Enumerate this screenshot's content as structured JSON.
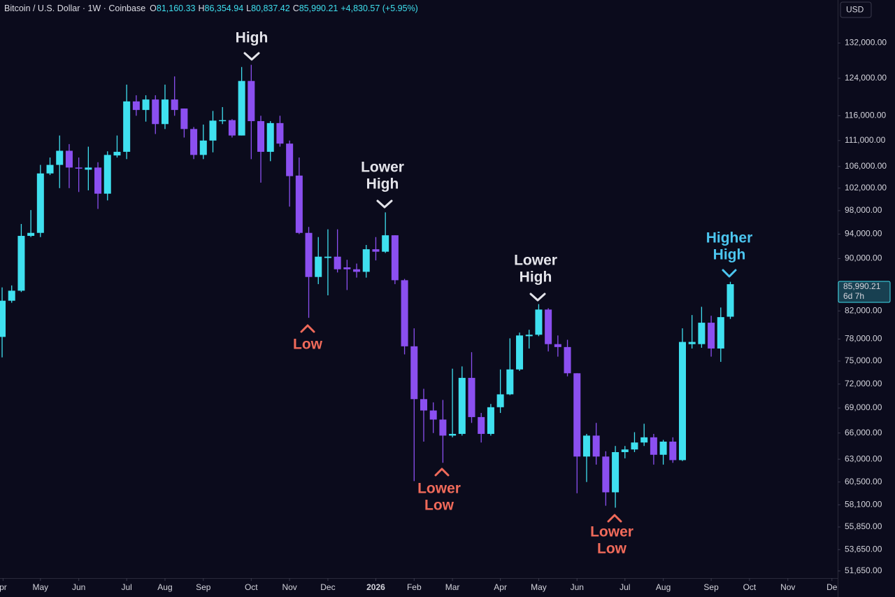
{
  "header": {
    "symbol": "Bitcoin / U.S. Dollar · 1W · Coinbase",
    "ohlc": [
      {
        "key": "O",
        "value": "81,160.33"
      },
      {
        "key": "H",
        "value": "86,354.94"
      },
      {
        "key": "L",
        "value": "80,837.42"
      },
      {
        "key": "C",
        "value": "85,990.21"
      }
    ],
    "change": "+4,830.57 (+5.95%)"
  },
  "currency": "USD",
  "annotations": [
    {
      "lines": [
        "High"
      ]
    },
    {
      "lines": [
        "Lower",
        "High"
      ]
    },
    {
      "lines": [
        "Low"
      ]
    },
    {
      "lines": [
        "Lower",
        "Low"
      ]
    },
    {
      "lines": [
        "Lower",
        "High"
      ]
    },
    {
      "lines": [
        "Lower",
        "Low"
      ]
    },
    {
      "lines": [
        "Higher",
        "High"
      ]
    }
  ],
  "chart_data": {
    "type": "candlestick",
    "log_scale": true,
    "up_color": "#3fe0ef",
    "down_color": "#8b4ff0",
    "x": [
      0,
      1,
      2,
      3,
      4,
      5,
      6,
      7,
      8,
      9,
      10,
      11,
      12,
      13,
      14,
      15,
      16,
      17,
      18,
      19,
      20,
      21,
      22,
      23,
      24,
      25,
      26,
      27,
      28,
      29,
      30,
      31,
      32,
      33,
      34,
      35,
      36,
      37,
      38,
      39,
      40,
      41,
      42,
      43,
      44,
      45,
      46,
      47,
      48,
      49,
      50,
      51,
      52,
      53,
      54,
      55,
      56,
      57,
      58,
      59,
      60,
      61,
      62,
      63,
      64,
      65,
      66,
      67,
      68,
      69,
      70,
      71,
      72,
      73,
      74,
      75,
      76
    ],
    "open": [
      78300,
      83500,
      85000,
      93700,
      94200,
      104700,
      106300,
      109000,
      105800,
      105400,
      105800,
      101000,
      108100,
      108800,
      119000,
      117200,
      119400,
      114300,
      119400,
      117500,
      113300,
      108200,
      111000,
      114900,
      115100,
      112000,
      123400,
      114900,
      108800,
      114500,
      110400,
      104300,
      94200,
      87100,
      90100,
      90300,
      88600,
      88300,
      87900,
      91500,
      91100,
      93800,
      86600,
      77000,
      70100,
      68700,
      67600,
      65700,
      65900,
      72800,
      67900,
      65900,
      69100,
      70700,
      73900,
      78400,
      78600,
      82200,
      77300,
      76900,
      73400,
      63300,
      65700,
      63300,
      59400,
      63800,
      64100,
      64900,
      65500,
      63500,
      65000,
      62900,
      77300,
      77300,
      80300,
      76700,
      81160.33
    ],
    "high": [
      85500,
      85800,
      95700,
      98100,
      106300,
      107700,
      112000,
      110300,
      107700,
      109800,
      106800,
      108900,
      112000,
      122600,
      120300,
      120300,
      120300,
      122600,
      124400,
      117500,
      113700,
      114200,
      117000,
      117800,
      115300,
      126500,
      127000,
      116000,
      114900,
      116000,
      111000,
      107700,
      95200,
      93500,
      94800,
      94800,
      89800,
      89200,
      92200,
      93500,
      97700,
      93800,
      86800,
      79500,
      71400,
      69700,
      70000,
      74000,
      74300,
      76200,
      68400,
      69500,
      73900,
      78100,
      78900,
      79300,
      83000,
      82400,
      78500,
      77900,
      73400,
      65900,
      67200,
      63900,
      64500,
      64500,
      66100,
      67100,
      65900,
      65200,
      65500,
      79500,
      81400,
      82600,
      81300,
      82500,
      86354.94
    ],
    "low": [
      75500,
      83200,
      84800,
      93500,
      93500,
      104400,
      102000,
      102000,
      101300,
      101600,
      98300,
      99800,
      107700,
      107400,
      116000,
      114800,
      112300,
      113300,
      116000,
      111600,
      107400,
      107400,
      108700,
      114300,
      111600,
      112000,
      107400,
      103000,
      107000,
      109800,
      98700,
      94000,
      81000,
      86000,
      84300,
      87800,
      85100,
      87000,
      87000,
      89700,
      90900,
      86000,
      75900,
      60600,
      65000,
      66000,
      62600,
      65500,
      65700,
      67200,
      64900,
      65700,
      68400,
      70600,
      73700,
      76700,
      78400,
      76300,
      75600,
      73000,
      59300,
      60500,
      62400,
      58000,
      57800,
      63100,
      63800,
      64500,
      62400,
      62400,
      62600,
      62800,
      76700,
      76800,
      75600,
      74900,
      80837.42
    ],
    "close": [
      83500,
      85000,
      93700,
      94200,
      104700,
      106300,
      109000,
      105800,
      105600,
      105800,
      101000,
      108200,
      108800,
      119000,
      117200,
      119400,
      114300,
      119400,
      117200,
      113300,
      108200,
      111000,
      115000,
      115100,
      112000,
      123400,
      114900,
      108800,
      114500,
      110400,
      104200,
      94200,
      87100,
      90300,
      90300,
      88300,
      88300,
      87900,
      91500,
      91100,
      93800,
      86600,
      77000,
      70100,
      68700,
      67600,
      65700,
      65900,
      72800,
      67900,
      65900,
      69100,
      70700,
      73900,
      78500,
      78600,
      82200,
      77300,
      76900,
      73400,
      63300,
      65700,
      63300,
      59400,
      63800,
      64100,
      64900,
      65500,
      63500,
      65000,
      62900,
      77600,
      77600,
      80300,
      76700,
      81100,
      85990.21
    ],
    "ylim": [
      51000,
      142500
    ],
    "yticks": [
      {
        "value": 132000,
        "label": "132,000.00"
      },
      {
        "value": 124000,
        "label": "124,000.00"
      },
      {
        "value": 116000,
        "label": "116,000.00"
      },
      {
        "value": 111000,
        "label": "111,000.00"
      },
      {
        "value": 106000,
        "label": "106,000.00"
      },
      {
        "value": 102000,
        "label": "102,000.00"
      },
      {
        "value": 98000,
        "label": "98,000.00"
      },
      {
        "value": 94000,
        "label": "94,000.00"
      },
      {
        "value": 90000,
        "label": "90,000.00"
      },
      {
        "value": 82000,
        "label": "82,000.00"
      },
      {
        "value": 78000,
        "label": "78,000.00"
      },
      {
        "value": 75000,
        "label": "75,000.00"
      },
      {
        "value": 72000,
        "label": "72,000.00"
      },
      {
        "value": 69000,
        "label": "69,000.00"
      },
      {
        "value": 66000,
        "label": "66,000.00"
      },
      {
        "value": 63000,
        "label": "63,000.00"
      },
      {
        "value": 60500,
        "label": "60,500.00"
      },
      {
        "value": 58100,
        "label": "58,100.00"
      },
      {
        "value": 55850,
        "label": "55,850.00"
      },
      {
        "value": 53650,
        "label": "53,650.00"
      },
      {
        "value": 51650,
        "label": "51,650.00"
      }
    ],
    "xlim": [
      -0.22,
      87.2
    ],
    "xticks": [
      {
        "value": 0.1,
        "label": "pr"
      },
      {
        "value": 4,
        "label": "May"
      },
      {
        "value": 8,
        "label": "Jun"
      },
      {
        "value": 13,
        "label": "Jul"
      },
      {
        "value": 17,
        "label": "Aug"
      },
      {
        "value": 21,
        "label": "Sep"
      },
      {
        "value": 26,
        "label": "Oct"
      },
      {
        "value": 30,
        "label": "Nov"
      },
      {
        "value": 34,
        "label": "Dec"
      },
      {
        "value": 39,
        "label": "2026"
      },
      {
        "value": 43,
        "label": "Feb"
      },
      {
        "value": 47,
        "label": "Mar"
      },
      {
        "value": 52,
        "label": "Apr"
      },
      {
        "value": 56,
        "label": "May"
      },
      {
        "value": 60,
        "label": "Jun"
      },
      {
        "value": 65,
        "label": "Jul"
      },
      {
        "value": 69,
        "label": "Aug"
      },
      {
        "value": 74,
        "label": "Sep"
      },
      {
        "value": 78,
        "label": "Oct"
      },
      {
        "value": 82,
        "label": "Nov"
      },
      {
        "value": 86.6,
        "label": "De"
      }
    ],
    "last_price": {
      "value": 85990.21,
      "label": "85,990.21"
    },
    "countdown": "6d 7h"
  }
}
